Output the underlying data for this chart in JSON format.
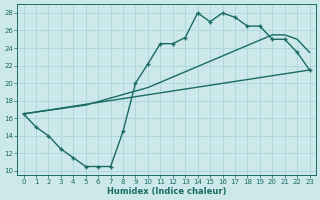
{
  "title": "",
  "xlabel": "Humidex (Indice chaleur)",
  "ylabel": "",
  "bg_color": "#cce8ea",
  "line_color": "#1a6b62",
  "grid_color": "#b0d8dc",
  "xlim": [
    -0.5,
    23.5
  ],
  "ylim": [
    9.5,
    29.0
  ],
  "xticks": [
    0,
    1,
    2,
    3,
    4,
    5,
    6,
    7,
    8,
    9,
    10,
    11,
    12,
    13,
    14,
    15,
    16,
    17,
    18,
    19,
    20,
    21,
    22,
    23
  ],
  "yticks": [
    10,
    12,
    14,
    16,
    18,
    20,
    22,
    24,
    26,
    28
  ],
  "line1_x": [
    0,
    1,
    2,
    3,
    4,
    5,
    6,
    7,
    8,
    9,
    10,
    11,
    12,
    13,
    14,
    15,
    16,
    17,
    18,
    19,
    20,
    21,
    22,
    23
  ],
  "line1_y": [
    16.5,
    15.0,
    14.0,
    12.5,
    11.5,
    10.5,
    10.5,
    10.5,
    14.5,
    20.0,
    22.2,
    24.5,
    24.5,
    25.2,
    28.0,
    27.0,
    28.0,
    27.5,
    26.5,
    26.5,
    25.0,
    25.0,
    23.5,
    21.5
  ],
  "line2_x": [
    0,
    23
  ],
  "line2_y": [
    16.5,
    21.5
  ],
  "line3_x": [
    0,
    5,
    10,
    15,
    20,
    21,
    22,
    23
  ],
  "line3_y": [
    16.5,
    17.5,
    19.5,
    22.5,
    25.5,
    25.5,
    25.0,
    23.5
  ]
}
